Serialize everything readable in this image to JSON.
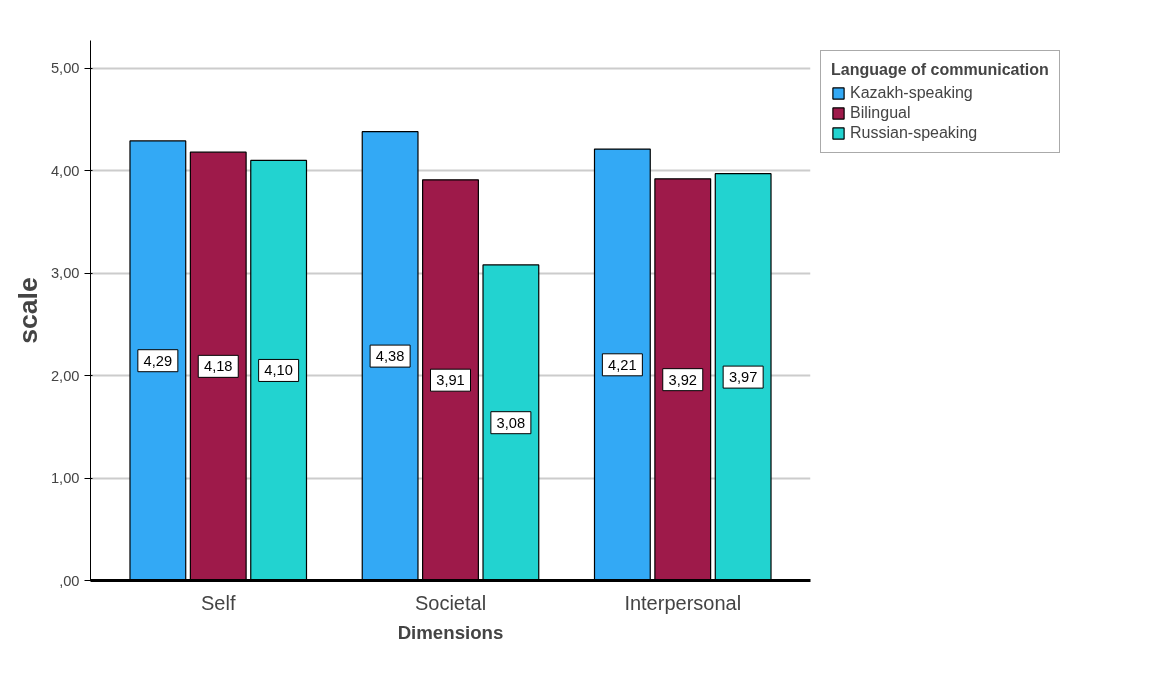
{
  "chart_data": {
    "type": "bar",
    "xlabel": "Dimensions",
    "ylabel": "scale",
    "legend_title": "Language of communication",
    "categories": [
      "Self",
      "Societal",
      "Interpersonal"
    ],
    "series": [
      {
        "name": "Kazakh-speaking",
        "color": "#33a9f5",
        "values": [
          4.29,
          4.38,
          4.21
        ],
        "value_labels": [
          "4,29",
          "4,38",
          "4,21"
        ]
      },
      {
        "name": "Bilingual",
        "color": "#9e1a4a",
        "values": [
          4.18,
          3.91,
          3.92
        ],
        "value_labels": [
          "4,18",
          "3,91",
          "3,92"
        ]
      },
      {
        "name": "Russian-speaking",
        "color": "#22d3d0",
        "values": [
          4.1,
          3.08,
          3.97
        ],
        "value_labels": [
          "4,10",
          "3,08",
          "3,97"
        ]
      }
    ],
    "ylim": [
      0,
      5.27
    ],
    "yticks": [
      {
        "value": 0,
        "label": ",00"
      },
      {
        "value": 1,
        "label": "1,00"
      },
      {
        "value": 2,
        "label": "2,00"
      },
      {
        "value": 3,
        "label": "3,00"
      },
      {
        "value": 4,
        "label": "4,00"
      },
      {
        "value": 5,
        "label": "5,00"
      }
    ],
    "grid": "y",
    "legend": "top right"
  }
}
